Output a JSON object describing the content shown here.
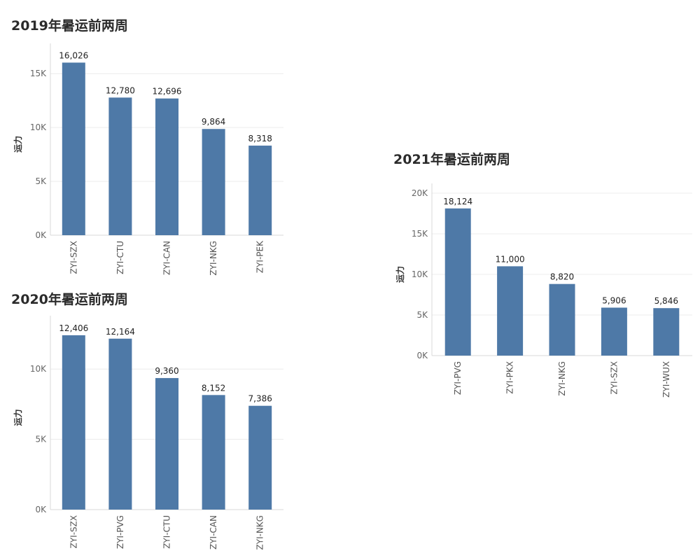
{
  "colors": {
    "bar": "#4e79a7",
    "grid": "#ececec",
    "axis": "#d9d9d9"
  },
  "chart_data": [
    {
      "type": "bar",
      "title": "2019年暑运前两周",
      "ylabel": "运力",
      "xlabel": "",
      "categories": [
        "ZYI-SZX",
        "ZYI-CTU",
        "ZYI-CAN",
        "ZYI-NKG",
        "ZYI-PEK"
      ],
      "values": [
        16026,
        12780,
        12696,
        9864,
        8318
      ],
      "data_labels": [
        "16,026",
        "12,780",
        "12,696",
        "9,864",
        "8,318"
      ],
      "yticks": [
        0,
        5000,
        10000,
        15000
      ],
      "ytick_labels": [
        "0K",
        "5K",
        "10K",
        "15K"
      ],
      "ylim": [
        0,
        16900
      ],
      "grid": true,
      "legend": "none"
    },
    {
      "type": "bar",
      "title": "2020年暑运前两周",
      "ylabel": "运力",
      "xlabel": "",
      "categories": [
        "ZYI-SZX",
        "ZYI-PVG",
        "ZYI-CTU",
        "ZYI-CAN",
        "ZYI-NKG"
      ],
      "values": [
        12406,
        12164,
        9360,
        8152,
        7386
      ],
      "data_labels": [
        "12,406",
        "12,164",
        "9,360",
        "8,152",
        "7,386"
      ],
      "yticks": [
        0,
        5000,
        10000
      ],
      "ytick_labels": [
        "0K",
        "5K",
        "10K"
      ],
      "ylim": [
        0,
        13100
      ],
      "grid": true,
      "legend": "none"
    },
    {
      "type": "bar",
      "title": "2021年暑运前两周",
      "ylabel": "运力",
      "xlabel": "",
      "categories": [
        "ZYI-PVG",
        "ZYI-PKX",
        "ZYI-NKG",
        "ZYI-SZX",
        "ZYI-WUX"
      ],
      "values": [
        18124,
        11000,
        8820,
        5906,
        5846
      ],
      "data_labels": [
        "18,124",
        "11,000",
        "8,820",
        "5,906",
        "5,846"
      ],
      "yticks": [
        0,
        5000,
        10000,
        15000,
        20000
      ],
      "ytick_labels": [
        "0K",
        "5K",
        "10K",
        "15K",
        "20K"
      ],
      "ylim": [
        0,
        20000
      ],
      "grid": true,
      "legend": "none"
    }
  ]
}
